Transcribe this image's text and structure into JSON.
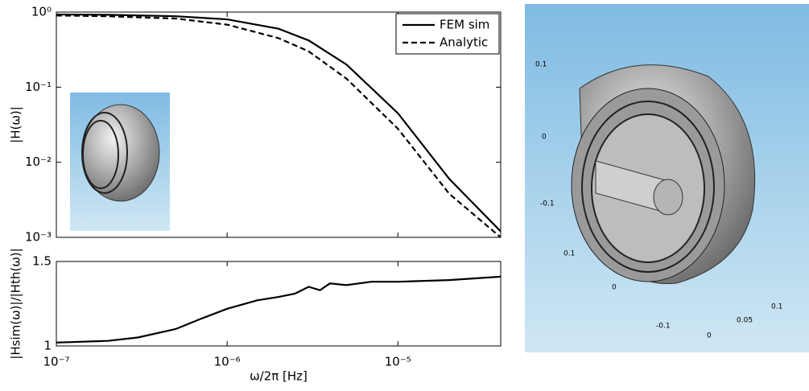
{
  "chart_data": [
    {
      "type": "line",
      "ylabel": "|H(ω)|",
      "xscale": "log",
      "yscale": "log",
      "xlim": [
        1e-07,
        4e-05
      ],
      "ylim": [
        0.001,
        1
      ],
      "xticks": [
        1e-07,
        1e-06,
        1e-05
      ],
      "yticks": [
        {
          "value": 1,
          "label": "10⁰"
        },
        {
          "value": 0.1,
          "label": "10⁻¹"
        },
        {
          "value": 0.01,
          "label": "10⁻²"
        },
        {
          "value": 0.001,
          "label": "10⁻³"
        }
      ],
      "legend": "upper right",
      "x": [
        1e-07,
        2e-07,
        5e-07,
        1e-06,
        2e-06,
        3e-06,
        5e-06,
        1e-05,
        2e-05,
        4e-05
      ],
      "series": [
        {
          "name": "FEM sim",
          "color": "#000000",
          "style": "solid",
          "values": [
            0.93,
            0.92,
            0.88,
            0.8,
            0.6,
            0.42,
            0.2,
            0.045,
            0.006,
            0.0012
          ]
        },
        {
          "name": "Analytic",
          "color": "#000000",
          "style": "dashed",
          "values": [
            0.9,
            0.88,
            0.82,
            0.68,
            0.45,
            0.3,
            0.13,
            0.028,
            0.0038,
            0.001
          ]
        }
      ]
    },
    {
      "type": "line",
      "ylabel": "|Hsim(ω)|/|Hth(ω)|",
      "xlabel": "ω/2π [Hz]",
      "xscale": "log",
      "xlim": [
        1e-07,
        4e-05
      ],
      "ylim": [
        1,
        1.5
      ],
      "xticks": [
        {
          "value": 1e-07,
          "label": "10⁻⁷"
        },
        {
          "value": 1e-06,
          "label": "10⁻⁶"
        },
        {
          "value": 1e-05,
          "label": "10⁻⁵"
        }
      ],
      "yticks": [
        1,
        1.5
      ],
      "x": [
        1e-07,
        2e-07,
        3e-07,
        5e-07,
        7e-07,
        1e-06,
        1.5e-06,
        2e-06,
        2.5e-06,
        3e-06,
        3.5e-06,
        4e-06,
        5e-06,
        7e-06,
        1e-05,
        2e-05,
        4e-05
      ],
      "series": [
        {
          "color": "#000000",
          "style": "solid",
          "values": [
            1.02,
            1.03,
            1.05,
            1.1,
            1.16,
            1.22,
            1.27,
            1.29,
            1.31,
            1.35,
            1.33,
            1.37,
            1.36,
            1.38,
            1.38,
            1.39,
            1.41
          ]
        }
      ]
    }
  ],
  "render_panel": {
    "tick_labels": [
      "0.1",
      "0",
      "-0.1",
      "0.1",
      "0",
      "-0.1",
      "0.1",
      "0.05",
      "0"
    ]
  }
}
